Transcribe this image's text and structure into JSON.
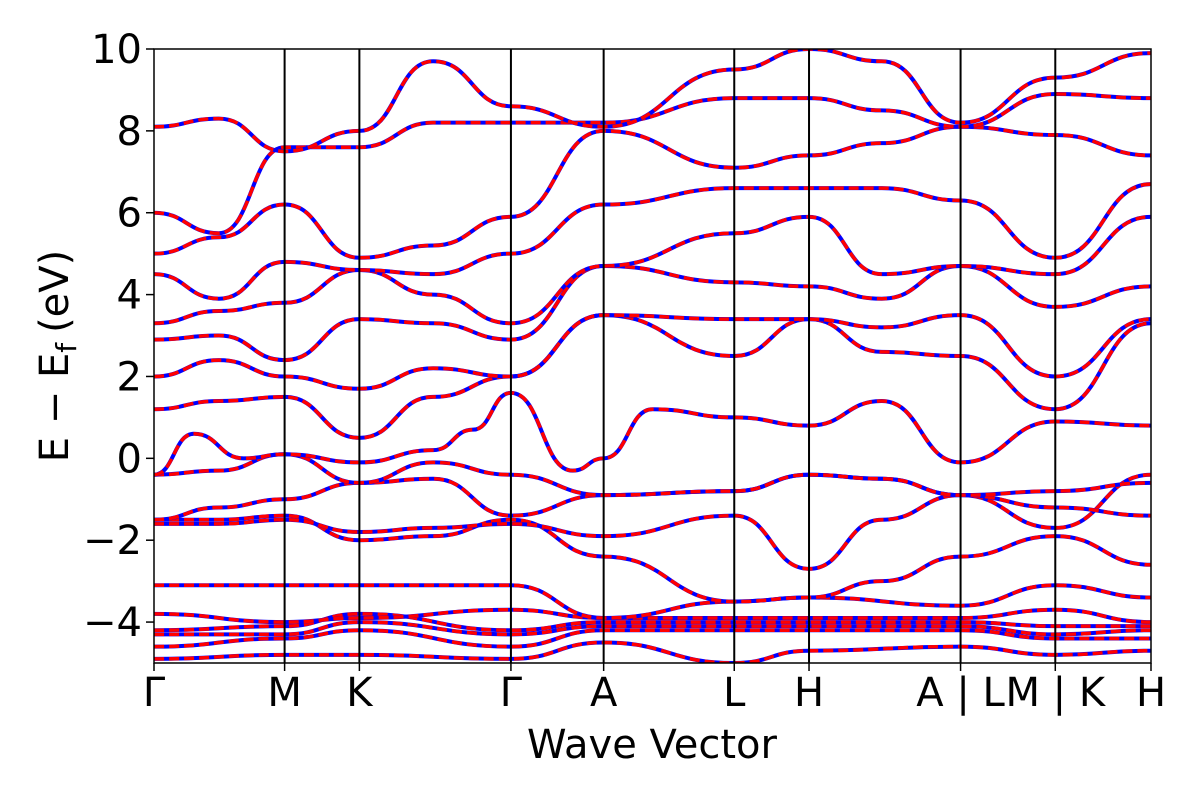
{
  "chart_data": {
    "type": "line",
    "title": "",
    "xlabel": "Wave Vector",
    "ylabel": "E − E",
    "ylabel_subscript": "f",
    "ylabel_unit": "(eV)",
    "ylim": [
      -5,
      10
    ],
    "yticks": [
      -4,
      -2,
      0,
      2,
      4,
      6,
      8,
      10
    ],
    "ytick_labels": [
      "−4",
      "−2",
      "0",
      "2",
      "4",
      "6",
      "8",
      "10"
    ],
    "xlim": [
      0,
      1
    ],
    "x_path_points": [
      {
        "x": 0.0,
        "label": "Γ"
      },
      {
        "x": 0.131,
        "label": "M"
      },
      {
        "x": 0.206,
        "label": "K"
      },
      {
        "x": 0.358,
        "label": "Γ"
      },
      {
        "x": 0.451,
        "label": "A"
      },
      {
        "x": 0.582,
        "label": "L"
      },
      {
        "x": 0.657,
        "label": "H"
      },
      {
        "x": 0.809,
        "label": "A | L"
      },
      {
        "x": 0.904,
        "label": "M | K"
      },
      {
        "x": 1.0,
        "label": "H"
      }
    ],
    "grid": false,
    "legend": "none",
    "series_styles": [
      {
        "color": "#0000ff",
        "style": "solid"
      },
      {
        "color": "#ff0000",
        "style": "dashed"
      }
    ],
    "bands": [
      {
        "x": [
          0,
          0.131,
          0.206,
          0.358,
          0.451,
          0.582,
          0.657,
          0.809,
          0.904,
          1.0
        ],
        "y": [
          -4.9,
          -4.8,
          -4.8,
          -4.9,
          -4.5,
          -5.0,
          -4.7,
          -4.6,
          -4.8,
          -4.7
        ]
      },
      {
        "x": [
          0,
          0.131,
          0.206,
          0.358,
          0.451,
          0.582,
          0.657,
          0.809,
          0.904,
          1.0
        ],
        "y": [
          -4.6,
          -4.4,
          -4.2,
          -4.6,
          -4.2,
          -4.2,
          -4.2,
          -4.2,
          -4.4,
          -4.4
        ]
      },
      {
        "x": [
          0,
          0.131,
          0.206,
          0.358,
          0.451,
          0.582,
          0.657,
          0.809,
          0.904,
          1.0
        ],
        "y": [
          -4.3,
          -4.3,
          -4.0,
          -4.3,
          -4.1,
          -4.1,
          -4.1,
          -4.1,
          -4.3,
          -4.2
        ]
      },
      {
        "x": [
          0,
          0.131,
          0.206,
          0.358,
          0.451,
          0.582,
          0.657,
          0.809,
          0.904,
          1.0
        ],
        "y": [
          -4.2,
          -4.1,
          -3.8,
          -4.2,
          -4.0,
          -4.0,
          -4.0,
          -4.0,
          -4.1,
          -4.1
        ]
      },
      {
        "x": [
          0,
          0.131,
          0.206,
          0.358,
          0.451,
          0.582,
          0.657,
          0.809,
          0.904,
          1.0
        ],
        "y": [
          -3.8,
          -4.0,
          -3.9,
          -3.7,
          -3.9,
          -3.9,
          -3.9,
          -3.9,
          -3.7,
          -4.0
        ]
      },
      {
        "x": [
          0,
          0.131,
          0.206,
          0.358,
          0.451,
          0.582,
          0.657,
          0.809,
          0.904,
          1.0
        ],
        "y": [
          -3.1,
          -3.1,
          -3.1,
          -3.1,
          -3.9,
          -3.5,
          -3.4,
          -3.6,
          -3.1,
          -3.4
        ]
      },
      {
        "x": [
          0,
          0.065,
          0.131,
          0.206,
          0.28,
          0.358,
          0.451,
          0.582,
          0.657,
          0.73,
          0.809,
          0.904,
          1.0
        ],
        "y": [
          -1.5,
          -1.5,
          -1.4,
          -2.0,
          -1.9,
          -1.5,
          -2.4,
          -3.5,
          -3.4,
          -3.0,
          -2.4,
          -1.9,
          -2.6
        ]
      },
      {
        "x": [
          0,
          0.065,
          0.131,
          0.206,
          0.28,
          0.358,
          0.451,
          0.582,
          0.657,
          0.73,
          0.809,
          0.904,
          1.0
        ],
        "y": [
          -1.6,
          -1.6,
          -1.5,
          -1.8,
          -1.7,
          -1.6,
          -1.9,
          -1.4,
          -2.7,
          -1.5,
          -0.9,
          -1.7,
          -0.4
        ]
      },
      {
        "x": [
          0,
          0.065,
          0.131,
          0.206,
          0.28,
          0.358,
          0.451,
          0.582,
          0.657,
          0.73,
          0.809,
          0.904,
          1.0
        ],
        "y": [
          -1.5,
          -1.2,
          -1.0,
          -0.6,
          -0.5,
          -1.4,
          -0.9,
          -0.8,
          -0.4,
          -0.5,
          -0.9,
          -1.2,
          -1.4
        ]
      },
      {
        "x": [
          0,
          0.065,
          0.131,
          0.206,
          0.28,
          0.358,
          0.451,
          0.582,
          0.657,
          0.73,
          0.809,
          0.904,
          1.0
        ],
        "y": [
          -0.4,
          -0.3,
          0.1,
          -0.6,
          -0.1,
          -0.4,
          -0.9,
          -0.8,
          -0.4,
          -0.5,
          -0.9,
          -0.8,
          -0.6
        ]
      },
      {
        "x": [
          0,
          0.04,
          0.09,
          0.131,
          0.206,
          0.28,
          0.32,
          0.358,
          0.42,
          0.451,
          0.5,
          0.582,
          0.657,
          0.73,
          0.809,
          0.904,
          1.0
        ],
        "y": [
          -0.4,
          0.6,
          0.0,
          0.1,
          -0.1,
          0.2,
          0.7,
          1.6,
          -0.3,
          0.0,
          1.2,
          1.0,
          0.8,
          1.4,
          -0.1,
          0.9,
          0.8
        ]
      },
      {
        "x": [
          0,
          0.065,
          0.131,
          0.206,
          0.28,
          0.358,
          0.451,
          0.582,
          0.657,
          0.73,
          0.809,
          0.904,
          1.0
        ],
        "y": [
          1.2,
          1.4,
          1.5,
          0.5,
          1.5,
          2.0,
          3.5,
          2.5,
          3.4,
          2.6,
          2.5,
          1.2,
          3.3
        ]
      },
      {
        "x": [
          0,
          0.065,
          0.131,
          0.206,
          0.28,
          0.358,
          0.451,
          0.582,
          0.657,
          0.73,
          0.809,
          0.904,
          1.0
        ],
        "y": [
          2.0,
          2.4,
          2.0,
          1.7,
          2.2,
          2.0,
          3.5,
          3.4,
          3.4,
          3.2,
          3.5,
          2.0,
          3.4
        ]
      },
      {
        "x": [
          0,
          0.065,
          0.131,
          0.206,
          0.28,
          0.358,
          0.451,
          0.582,
          0.657,
          0.73,
          0.809,
          0.904,
          1.0
        ],
        "y": [
          2.9,
          3.0,
          2.4,
          3.4,
          3.3,
          2.9,
          4.7,
          4.3,
          4.2,
          3.9,
          4.7,
          3.7,
          4.2
        ]
      },
      {
        "x": [
          0,
          0.065,
          0.131,
          0.206,
          0.28,
          0.358,
          0.451,
          0.582,
          0.657,
          0.73,
          0.809,
          0.904,
          1.0
        ],
        "y": [
          3.3,
          3.6,
          3.8,
          4.6,
          4.0,
          3.3,
          4.7,
          5.5,
          5.9,
          4.5,
          4.7,
          4.5,
          5.9
        ]
      },
      {
        "x": [
          0,
          0.065,
          0.131,
          0.206,
          0.28,
          0.358,
          0.451,
          0.582,
          0.657,
          0.73,
          0.809,
          0.904,
          1.0
        ],
        "y": [
          4.5,
          3.9,
          4.8,
          4.6,
          4.5,
          5.0,
          6.2,
          6.6,
          6.6,
          6.6,
          6.3,
          4.9,
          6.7
        ]
      },
      {
        "x": [
          0,
          0.065,
          0.131,
          0.206,
          0.28,
          0.358,
          0.451,
          0.582,
          0.657,
          0.73,
          0.809,
          0.904,
          1.0
        ],
        "y": [
          5.0,
          5.4,
          6.2,
          4.9,
          5.2,
          5.9,
          8.0,
          7.1,
          7.4,
          7.7,
          8.1,
          7.9,
          7.4
        ]
      },
      {
        "x": [
          0,
          0.065,
          0.131,
          0.206,
          0.28,
          0.358,
          0.451,
          0.582,
          0.657,
          0.73,
          0.809,
          0.904,
          1.0
        ],
        "y": [
          6.0,
          5.5,
          7.6,
          7.6,
          8.2,
          8.2,
          8.2,
          8.8,
          8.8,
          8.5,
          8.1,
          8.9,
          8.8
        ]
      },
      {
        "x": [
          0,
          0.065,
          0.131,
          0.206,
          0.28,
          0.358,
          0.451,
          0.582,
          0.657,
          0.73,
          0.809,
          0.904,
          1.0
        ],
        "y": [
          8.1,
          8.3,
          7.5,
          8.0,
          9.7,
          8.6,
          8.1,
          9.5,
          10.0,
          9.7,
          8.2,
          9.3,
          9.9
        ]
      }
    ]
  }
}
